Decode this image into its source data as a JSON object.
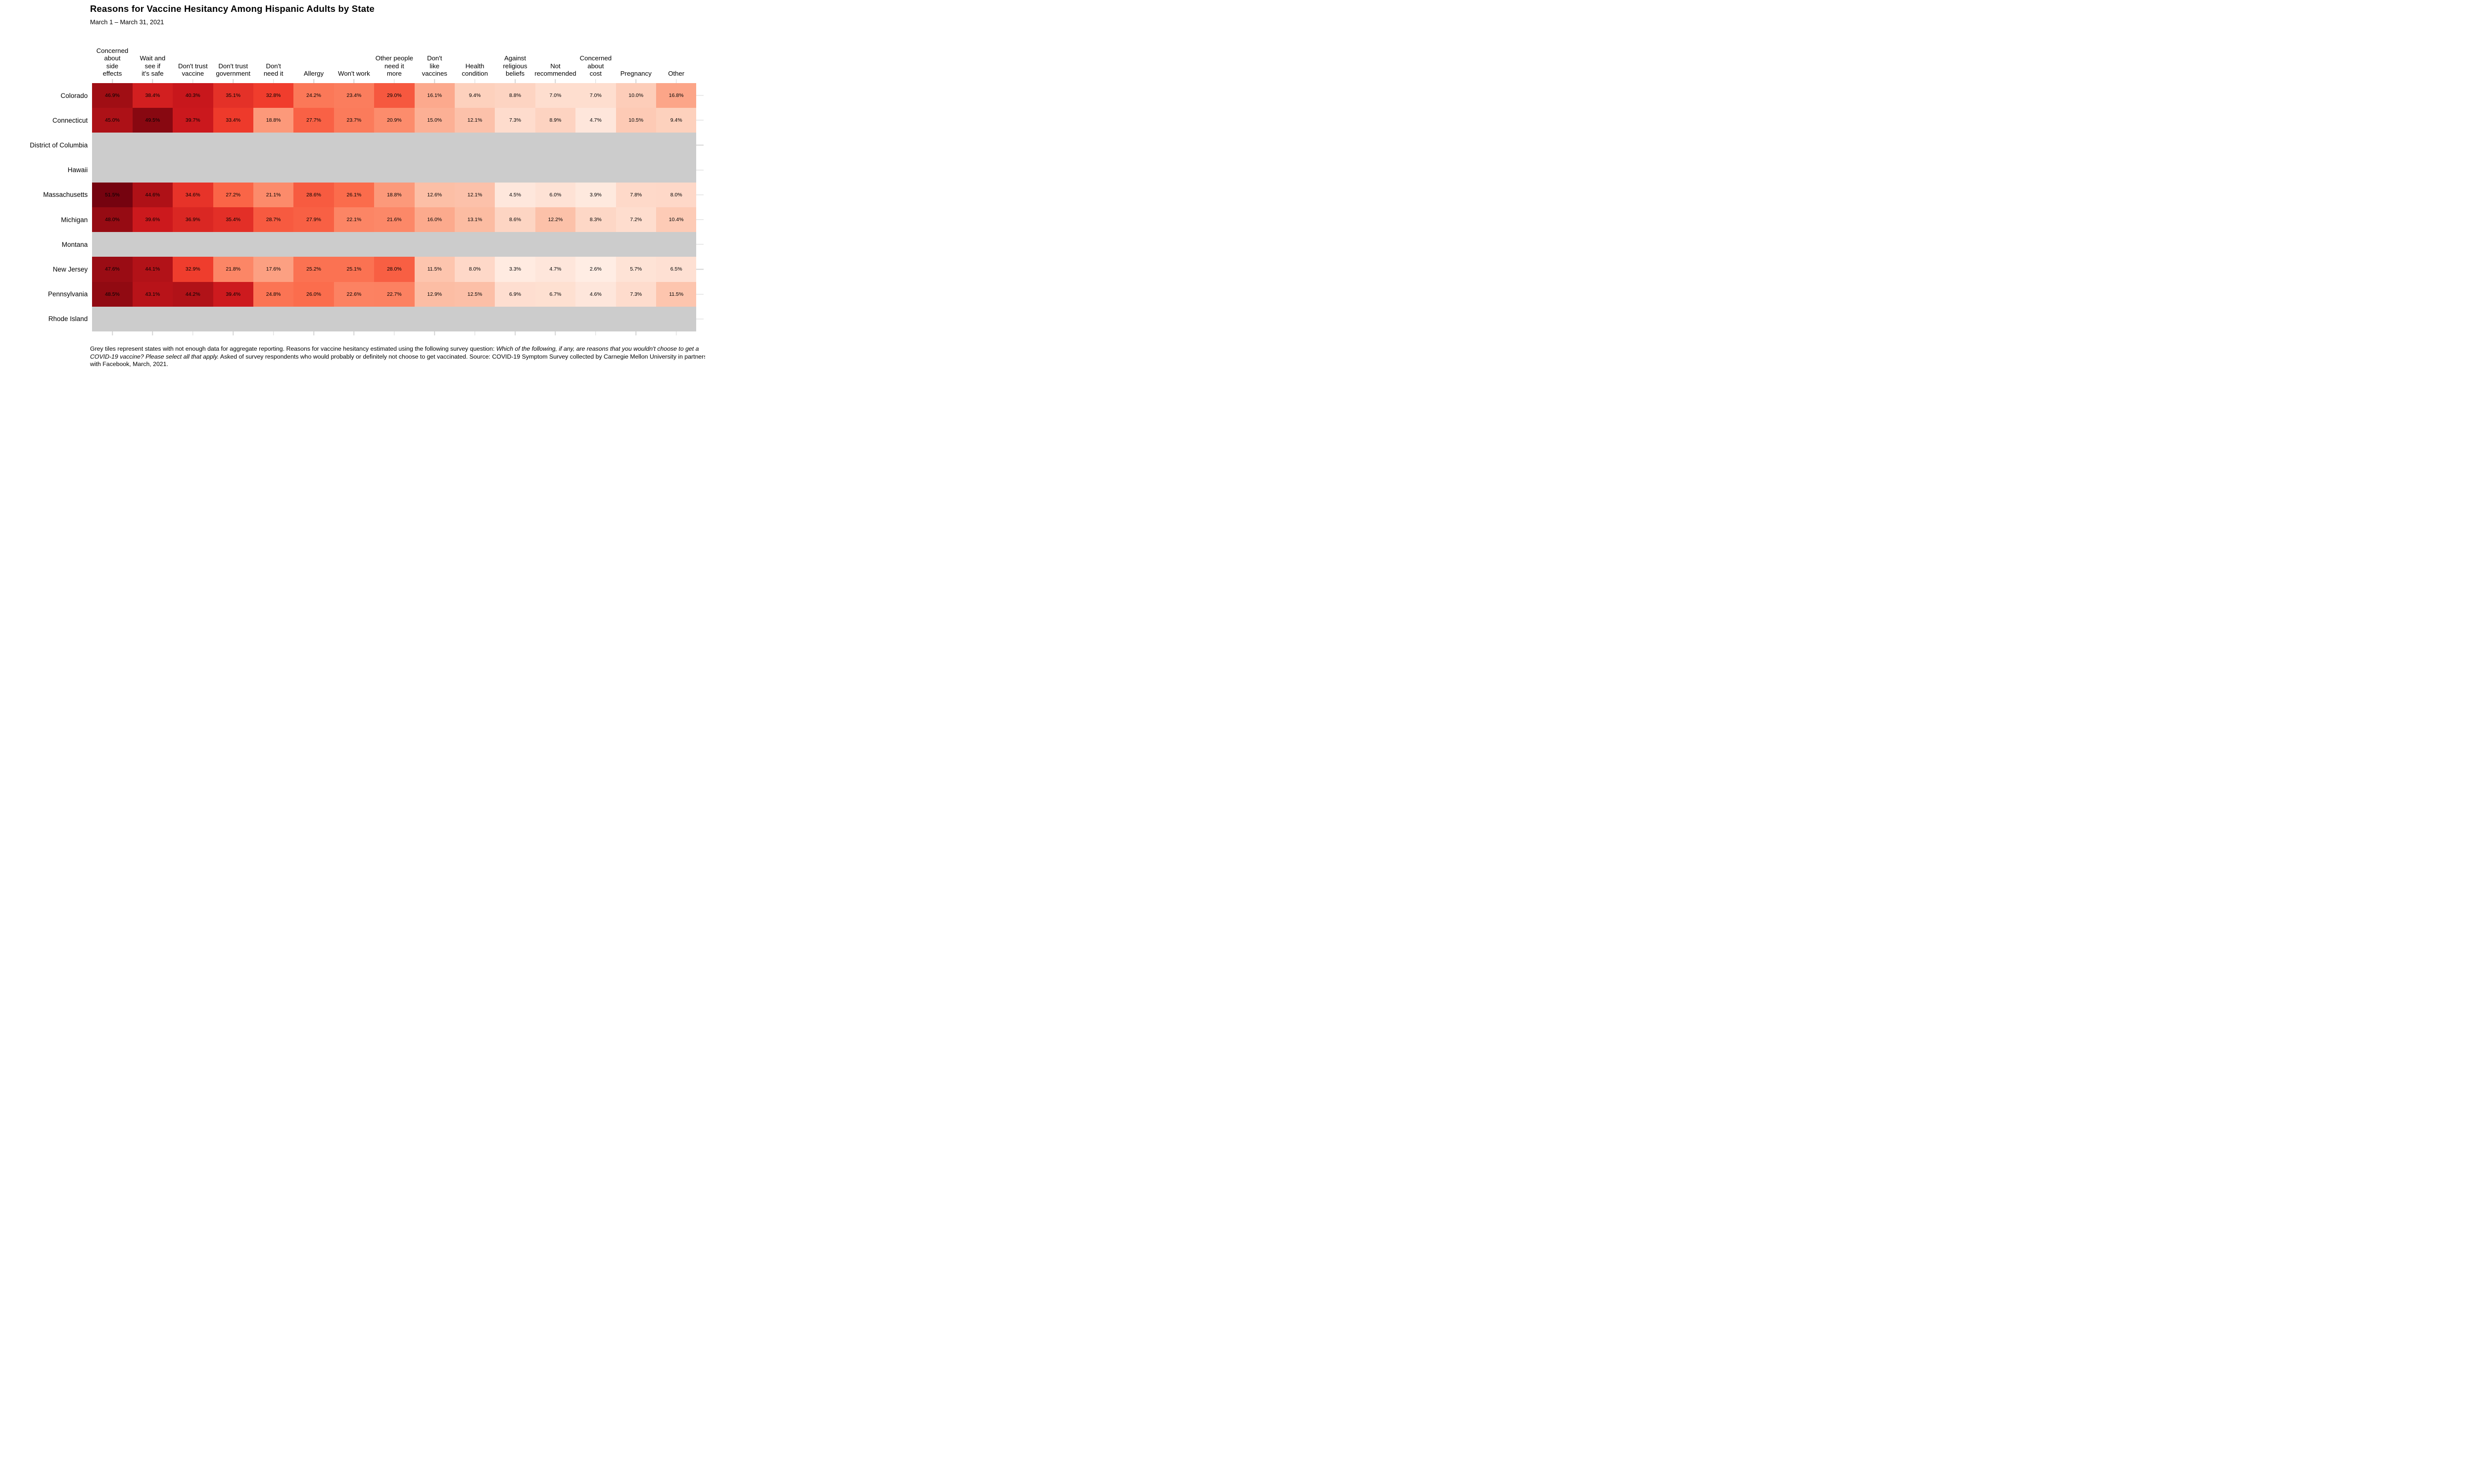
{
  "chart_data": {
    "type": "heatmap",
    "title": "Reasons for Vaccine Hesitancy Among Hispanic Adults by State",
    "subtitle": "March 1 – March 31, 2021",
    "value_format": "percent_one_decimal",
    "columns": [
      "Concerned\nabout\nside\neffects",
      "Wait and\nsee if\nit's safe",
      "Don't trust\nvaccine",
      "Don't trust\ngovernment",
      "Don't\nneed it",
      "Allergy",
      "Won't work",
      "Other people\nneed it\nmore",
      "Don't\nlike\nvaccines",
      "Health\ncondition",
      "Against\nreligious\nbeliefs",
      "Not\nrecommended",
      "Concerned\nabout\ncost",
      "Pregnancy",
      "Other"
    ],
    "rows": [
      {
        "state": "Colorado",
        "values": [
          46.9,
          38.4,
          40.3,
          35.1,
          32.8,
          24.2,
          23.4,
          29.0,
          16.1,
          9.4,
          8.8,
          7.0,
          7.0,
          10.0,
          16.8
        ]
      },
      {
        "state": "Connecticut",
        "values": [
          45.0,
          49.5,
          39.7,
          33.4,
          18.8,
          27.7,
          23.7,
          20.9,
          15.0,
          12.1,
          7.3,
          8.9,
          4.7,
          10.5,
          9.4
        ]
      },
      {
        "state": "District of Columbia",
        "values": null
      },
      {
        "state": "Hawaii",
        "values": null
      },
      {
        "state": "Massachusetts",
        "values": [
          51.5,
          44.6,
          34.6,
          27.2,
          21.1,
          28.6,
          26.1,
          18.8,
          12.6,
          12.1,
          4.5,
          6.0,
          3.9,
          7.8,
          8.0
        ]
      },
      {
        "state": "Michigan",
        "values": [
          48.0,
          39.6,
          36.9,
          35.4,
          28.7,
          27.9,
          22.1,
          21.6,
          16.0,
          13.1,
          8.6,
          12.2,
          8.3,
          7.2,
          10.4
        ]
      },
      {
        "state": "Montana",
        "values": null
      },
      {
        "state": "New Jersey",
        "values": [
          47.6,
          44.1,
          32.9,
          21.8,
          17.6,
          25.2,
          25.1,
          28.0,
          11.5,
          8.0,
          3.3,
          4.7,
          2.6,
          5.7,
          6.5
        ]
      },
      {
        "state": "Pennsylvania",
        "values": [
          48.5,
          43.1,
          44.2,
          39.4,
          24.8,
          26.0,
          22.6,
          22.7,
          12.9,
          12.5,
          6.9,
          6.7,
          4.6,
          7.3,
          11.5
        ]
      },
      {
        "state": "Rhode Island",
        "values": null
      }
    ],
    "color_scale": {
      "name": "Reds",
      "domain": [
        0,
        53
      ],
      "palette": [
        "#fff5f0",
        "#fee0d2",
        "#fcbba1",
        "#fc9272",
        "#fb6a4a",
        "#ef3b2c",
        "#cb181d",
        "#a50f15",
        "#67000d"
      ],
      "missing": "#cccccc",
      "tick_color": "#d5d5d5",
      "text_color": "#000000"
    },
    "legend": "none",
    "grid": "off"
  },
  "footnote": {
    "segments": [
      {
        "italic": false,
        "text": "Grey tiles represent states with not enough data for aggregate reporting. Reasons for vaccine hesitancy estimated using the following survey question: "
      },
      {
        "italic": true,
        "text": "Which of the following, if any, are reasons that you wouldn't choose to get a COVID-19 vaccine? Please select all that apply."
      },
      {
        "italic": false,
        "text": " Asked of survey respondents who would probably or definitely not choose to get vaccinated. Source: COVID-19 Symptom Survey collected by Carnegie Mellon University in partnership with Facebook, March, 2021."
      }
    ]
  }
}
